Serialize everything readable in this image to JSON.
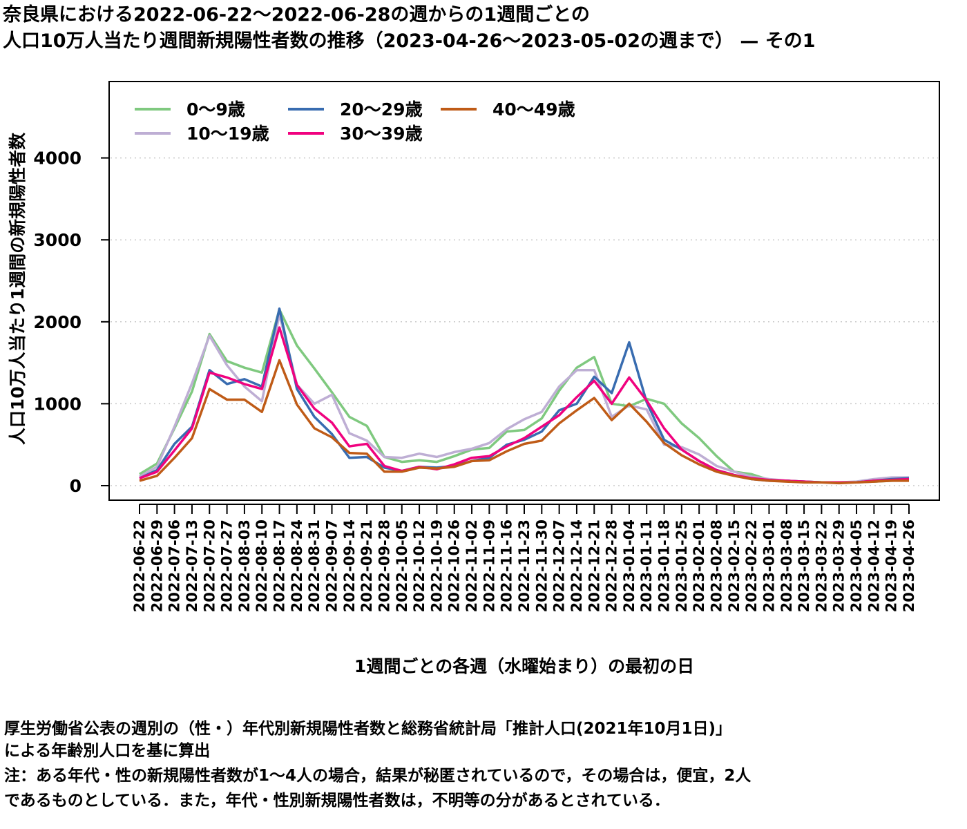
{
  "chart_data": {
    "type": "line",
    "title_line1": "奈良県における2022-06-22〜2022-06-28の週からの1週間ごとの",
    "title_line2": "人口10万人当たり週間新規陽性者数の推移（2023-04-26〜2023-05-02の週まで） — その1",
    "xlabel": "1週間ごとの各週（水曜始まり）の最初の日",
    "ylabel": "人口10万人当たり1週間の新規陽性者数",
    "ylim": [
      -100,
      4950
    ],
    "yticks": [
      0,
      1000,
      2000,
      3000,
      4000
    ],
    "grid": "horizontal dotted",
    "legend_position": "top-left",
    "x": [
      "2022-06-22",
      "2022-06-29",
      "2022-07-06",
      "2022-07-13",
      "2022-07-20",
      "2022-07-27",
      "2022-08-03",
      "2022-08-10",
      "2022-08-17",
      "2022-08-24",
      "2022-08-31",
      "2022-09-07",
      "2022-09-14",
      "2022-09-21",
      "2022-09-28",
      "2022-10-05",
      "2022-10-12",
      "2022-10-19",
      "2022-10-26",
      "2022-11-02",
      "2022-11-09",
      "2022-11-16",
      "2022-11-23",
      "2022-11-30",
      "2022-12-07",
      "2022-12-14",
      "2022-12-21",
      "2022-12-28",
      "2023-01-04",
      "2023-01-11",
      "2023-01-18",
      "2023-01-25",
      "2023-02-01",
      "2023-02-08",
      "2023-02-15",
      "2023-02-22",
      "2023-03-01",
      "2023-03-08",
      "2023-03-15",
      "2023-03-22",
      "2023-03-29",
      "2023-04-05",
      "2023-04-12",
      "2023-04-19",
      "2023-04-26"
    ],
    "series": [
      {
        "name": "0〜9歳",
        "color": "#7fc97f",
        "values": [
          140,
          270,
          700,
          1150,
          1850,
          1520,
          1440,
          1380,
          2150,
          1710,
          1430,
          1140,
          840,
          730,
          350,
          290,
          310,
          290,
          360,
          440,
          460,
          660,
          680,
          820,
          1160,
          1440,
          1570,
          1000,
          970,
          1060,
          1000,
          760,
          580,
          360,
          170,
          140,
          70,
          60,
          50,
          40,
          40,
          40,
          50,
          60,
          70
        ]
      },
      {
        "name": "10〜19歳",
        "color": "#beaed4",
        "values": [
          110,
          230,
          720,
          1250,
          1830,
          1470,
          1210,
          1030,
          2090,
          1230,
          1000,
          1110,
          640,
          550,
          350,
          340,
          390,
          350,
          410,
          450,
          520,
          690,
          810,
          900,
          1210,
          1410,
          1410,
          840,
          980,
          930,
          500,
          470,
          380,
          240,
          170,
          110,
          80,
          60,
          50,
          40,
          40,
          50,
          80,
          100,
          100
        ]
      },
      {
        "name": "20〜29歳",
        "color": "#386cb0",
        "values": [
          90,
          190,
          510,
          720,
          1410,
          1240,
          1300,
          1210,
          2160,
          1180,
          840,
          630,
          340,
          350,
          220,
          180,
          230,
          220,
          240,
          300,
          340,
          500,
          560,
          660,
          920,
          1000,
          1330,
          1130,
          1750,
          1020,
          560,
          440,
          300,
          190,
          130,
          80,
          60,
          60,
          50,
          40,
          40,
          40,
          60,
          80,
          90
        ]
      },
      {
        "name": "30〜39歳",
        "color": "#f0027f",
        "values": [
          90,
          170,
          430,
          700,
          1380,
          1320,
          1240,
          1180,
          1930,
          1230,
          940,
          770,
          480,
          510,
          240,
          180,
          230,
          200,
          260,
          340,
          360,
          480,
          580,
          720,
          860,
          1080,
          1280,
          1000,
          1320,
          1040,
          700,
          440,
          300,
          190,
          130,
          90,
          70,
          60,
          50,
          40,
          40,
          40,
          60,
          70,
          80
        ]
      },
      {
        "name": "40〜49歳",
        "color": "#bf5b17",
        "values": [
          60,
          120,
          340,
          580,
          1180,
          1050,
          1050,
          900,
          1530,
          990,
          700,
          590,
          400,
          390,
          170,
          170,
          220,
          210,
          230,
          300,
          310,
          420,
          510,
          550,
          760,
          920,
          1070,
          800,
          1000,
          780,
          520,
          370,
          260,
          170,
          120,
          80,
          60,
          50,
          40,
          40,
          30,
          40,
          50,
          60,
          60
        ]
      }
    ]
  },
  "notes": [
    "厚生労働省公表の週別の（性・）年代別新規陽性者数と総務省統計局「推計人口(2021年10月1日)」",
    "による年齢別人口を基に算出",
    "注：ある年代・性の新規陽性者数が1〜4人の場合，結果が秘匿されているので，その場合は，便宜，2人",
    "であるものとしている．また，年代・性別新規陽性者数は，不明等の分があるとされている．"
  ]
}
